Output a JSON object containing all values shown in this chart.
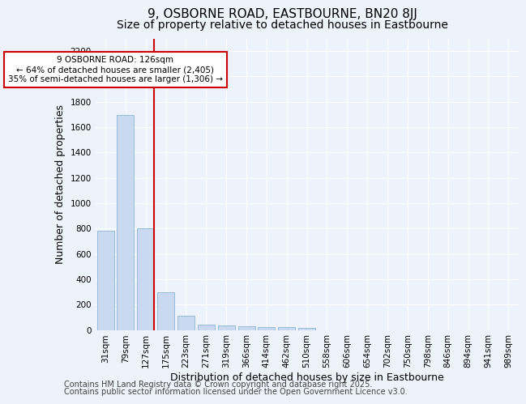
{
  "title1": "9, OSBORNE ROAD, EASTBOURNE, BN20 8JJ",
  "title2": "Size of property relative to detached houses in Eastbourne",
  "xlabel": "Distribution of detached houses by size in Eastbourne",
  "ylabel": "Number of detached properties",
  "categories": [
    "31sqm",
    "79sqm",
    "127sqm",
    "175sqm",
    "223sqm",
    "271sqm",
    "319sqm",
    "366sqm",
    "414sqm",
    "462sqm",
    "510sqm",
    "558sqm",
    "606sqm",
    "654sqm",
    "702sqm",
    "750sqm",
    "798sqm",
    "846sqm",
    "894sqm",
    "941sqm",
    "989sqm"
  ],
  "values": [
    780,
    1695,
    800,
    300,
    110,
    40,
    35,
    28,
    20,
    20,
    18,
    0,
    0,
    0,
    0,
    0,
    0,
    0,
    0,
    0,
    0
  ],
  "bar_color": "#c9d9f0",
  "bar_edge_color": "#8ab4d8",
  "highlight_line_index": 2,
  "highlight_color": "#cc0000",
  "annotation_text": "9 OSBORNE ROAD: 126sqm\n← 64% of detached houses are smaller (2,405)\n35% of semi-detached houses are larger (1,306) →",
  "annotation_box_color": "#cc0000",
  "ylim": [
    0,
    2300
  ],
  "yticks": [
    0,
    200,
    400,
    600,
    800,
    1000,
    1200,
    1400,
    1600,
    1800,
    2000,
    2200
  ],
  "footer1": "Contains HM Land Registry data © Crown copyright and database right 2025.",
  "footer2": "Contains public sector information licensed under the Open Government Licence v3.0.",
  "bg_color": "#eef2fa",
  "plot_bg_color": "#eef2fa",
  "grid_color": "#ffffff",
  "title_fontsize": 11,
  "subtitle_fontsize": 10,
  "tick_fontsize": 7.5,
  "label_fontsize": 9,
  "footer_fontsize": 7
}
